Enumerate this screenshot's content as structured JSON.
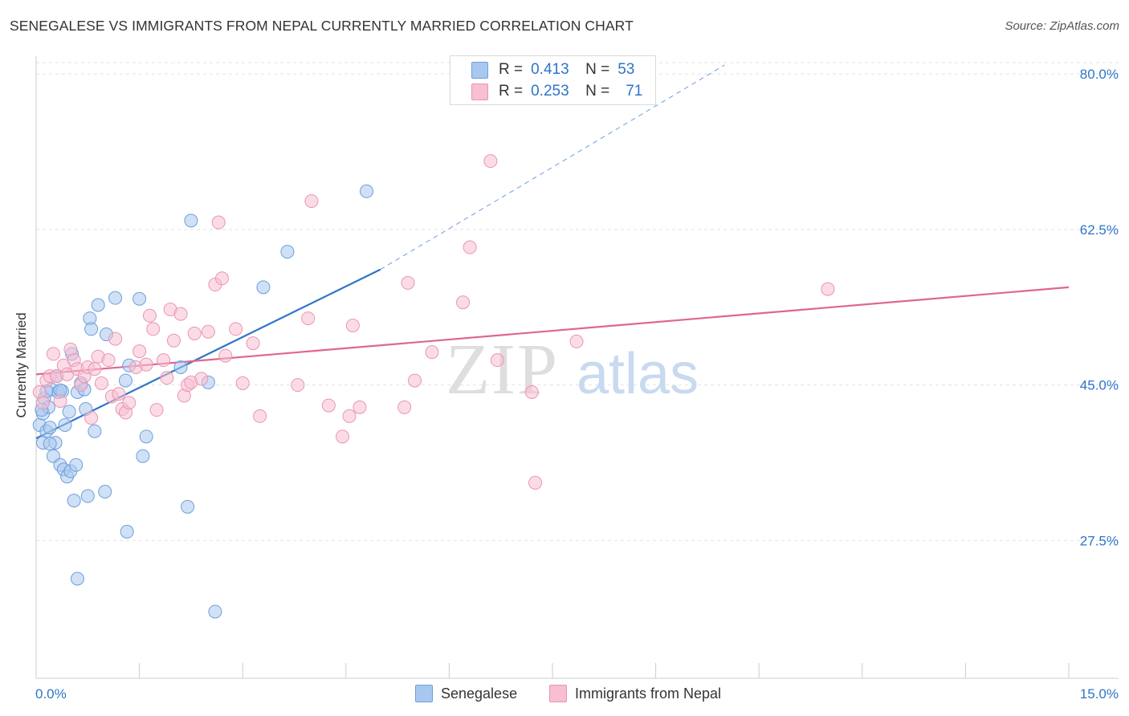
{
  "title": "SENEGALESE VS IMMIGRANTS FROM NEPAL CURRENTLY MARRIED CORRELATION CHART",
  "source": "Source: ZipAtlas.com",
  "watermark": {
    "left": "ZIP",
    "right": "atlas"
  },
  "legend": {
    "r_label": "R =",
    "n_label": "N =",
    "rows": [
      {
        "r": "0.413",
        "n": "53",
        "color": "#a9c8ef",
        "stroke": "#6d9fdc"
      },
      {
        "r": "0.253",
        "n": "71",
        "color": "#f7bfd1",
        "stroke": "#e995b2"
      }
    ]
  },
  "bottom_legend": [
    "Senegalese",
    "Immigrants from Nepal"
  ],
  "chart_data": {
    "type": "scatter",
    "title": "SENEGALESE VS IMMIGRANTS FROM NEPAL CURRENTLY MARRIED CORRELATION CHART",
    "xlabel": "",
    "ylabel": "Currently Married",
    "xlim": [
      0,
      15
    ],
    "ylim": [
      12,
      82
    ],
    "x_tick_labels": [
      "0.0%",
      "15.0%"
    ],
    "y_ticks": [
      27.5,
      45.0,
      62.5,
      80.0
    ],
    "y_tick_labels": [
      "27.5%",
      "45.0%",
      "62.5%",
      "80.0%"
    ],
    "grid": true,
    "series": [
      {
        "name": "Senegalese",
        "color": "#6d9fdc",
        "fill": "#a9c8ef",
        "points": [
          [
            0.05,
            40.5
          ],
          [
            0.1,
            41.8
          ],
          [
            0.12,
            43.5
          ],
          [
            0.15,
            39.8
          ],
          [
            0.18,
            42.5
          ],
          [
            0.2,
            40.2
          ],
          [
            0.22,
            44.5
          ],
          [
            0.25,
            37.0
          ],
          [
            0.28,
            38.5
          ],
          [
            0.3,
            46.0
          ],
          [
            0.32,
            44.2
          ],
          [
            0.35,
            36.0
          ],
          [
            0.38,
            44.3
          ],
          [
            0.4,
            35.5
          ],
          [
            0.42,
            40.5
          ],
          [
            0.45,
            34.7
          ],
          [
            0.48,
            42.0
          ],
          [
            0.5,
            35.3
          ],
          [
            0.52,
            48.5
          ],
          [
            0.55,
            32.0
          ],
          [
            0.58,
            36.0
          ],
          [
            0.6,
            44.2
          ],
          [
            0.65,
            45.2
          ],
          [
            0.7,
            44.5
          ],
          [
            0.72,
            42.3
          ],
          [
            0.75,
            32.5
          ],
          [
            0.78,
            52.5
          ],
          [
            0.8,
            51.3
          ],
          [
            0.85,
            39.8
          ],
          [
            0.9,
            54.0
          ],
          [
            1.0,
            33.0
          ],
          [
            1.02,
            50.7
          ],
          [
            1.15,
            54.8
          ],
          [
            1.3,
            45.5
          ],
          [
            1.32,
            28.5
          ],
          [
            1.35,
            47.2
          ],
          [
            1.5,
            54.7
          ],
          [
            1.55,
            37.0
          ],
          [
            1.6,
            39.2
          ],
          [
            2.1,
            47.0
          ],
          [
            2.2,
            31.3
          ],
          [
            2.25,
            63.5
          ],
          [
            2.5,
            45.3
          ],
          [
            2.6,
            19.5
          ],
          [
            3.3,
            56.0
          ],
          [
            3.65,
            60.0
          ],
          [
            4.8,
            66.8
          ],
          [
            0.6,
            23.2
          ],
          [
            0.1,
            38.5
          ],
          [
            0.08,
            42.2
          ],
          [
            0.2,
            38.4
          ],
          [
            0.15,
            44.3
          ],
          [
            0.35,
            44.4
          ]
        ]
      },
      {
        "name": "Immigrants from Nepal",
        "color": "#e995b2",
        "fill": "#f7bfd1",
        "points": [
          [
            0.05,
            44.2
          ],
          [
            0.1,
            43.0
          ],
          [
            0.15,
            45.5
          ],
          [
            0.2,
            46.0
          ],
          [
            0.25,
            48.5
          ],
          [
            0.3,
            46.0
          ],
          [
            0.35,
            43.2
          ],
          [
            0.4,
            47.2
          ],
          [
            0.45,
            46.2
          ],
          [
            0.5,
            49.0
          ],
          [
            0.55,
            47.8
          ],
          [
            0.6,
            46.8
          ],
          [
            0.65,
            45.0
          ],
          [
            0.7,
            46.0
          ],
          [
            0.75,
            47.0
          ],
          [
            0.8,
            41.3
          ],
          [
            0.85,
            46.8
          ],
          [
            0.9,
            48.2
          ],
          [
            0.95,
            45.2
          ],
          [
            1.05,
            47.8
          ],
          [
            1.1,
            43.7
          ],
          [
            1.15,
            50.2
          ],
          [
            1.2,
            44.0
          ],
          [
            1.25,
            42.3
          ],
          [
            1.3,
            41.9
          ],
          [
            1.35,
            43.0
          ],
          [
            1.45,
            47.0
          ],
          [
            1.5,
            48.8
          ],
          [
            1.6,
            47.3
          ],
          [
            1.65,
            52.8
          ],
          [
            1.7,
            51.3
          ],
          [
            1.75,
            42.2
          ],
          [
            1.85,
            47.8
          ],
          [
            1.9,
            45.8
          ],
          [
            1.95,
            53.5
          ],
          [
            2.0,
            50.0
          ],
          [
            2.1,
            53.0
          ],
          [
            2.15,
            43.8
          ],
          [
            2.2,
            45.0
          ],
          [
            2.25,
            45.3
          ],
          [
            2.3,
            50.8
          ],
          [
            2.4,
            45.7
          ],
          [
            2.5,
            51.0
          ],
          [
            2.6,
            56.3
          ],
          [
            2.65,
            63.3
          ],
          [
            2.7,
            57.0
          ],
          [
            2.75,
            48.3
          ],
          [
            2.9,
            51.3
          ],
          [
            3.0,
            45.2
          ],
          [
            3.15,
            49.7
          ],
          [
            3.25,
            41.5
          ],
          [
            3.8,
            45.0
          ],
          [
            3.95,
            52.5
          ],
          [
            4.0,
            65.7
          ],
          [
            4.25,
            42.7
          ],
          [
            4.45,
            39.2
          ],
          [
            4.55,
            41.5
          ],
          [
            4.6,
            51.7
          ],
          [
            4.7,
            42.5
          ],
          [
            5.35,
            42.5
          ],
          [
            5.4,
            56.5
          ],
          [
            5.5,
            45.5
          ],
          [
            5.75,
            48.7
          ],
          [
            6.2,
            54.3
          ],
          [
            6.3,
            60.5
          ],
          [
            6.6,
            70.2
          ],
          [
            6.7,
            47.8
          ],
          [
            7.2,
            44.2
          ],
          [
            7.25,
            34.0
          ],
          [
            7.85,
            49.9
          ],
          [
            11.5,
            55.8
          ]
        ]
      }
    ],
    "trend_lines": [
      {
        "series": "Senegalese",
        "x": [
          0,
          5.0
        ],
        "y": [
          39.0,
          58.0
        ],
        "dashed_extension_to": [
          10.0,
          81.0
        ]
      },
      {
        "series": "Immigrants from Nepal",
        "x": [
          0,
          15.0
        ],
        "y": [
          46.2,
          56.0
        ]
      }
    ]
  }
}
